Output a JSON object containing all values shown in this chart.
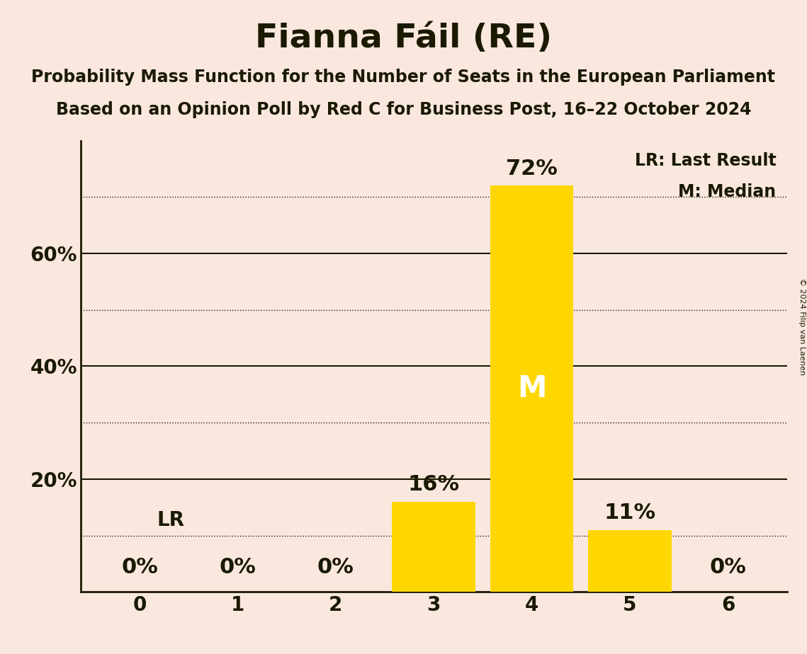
{
  "title": "Fianna Fáil (RE)",
  "subtitle1": "Probability Mass Function for the Number of Seats in the European Parliament",
  "subtitle2": "Based on an Opinion Poll by Red C for Business Post, 16–22 October 2024",
  "copyright": "© 2024 Filip van Laenen",
  "categories": [
    0,
    1,
    2,
    3,
    4,
    5,
    6
  ],
  "values": [
    0,
    0,
    0,
    16,
    72,
    11,
    0
  ],
  "bar_color": "#FFD700",
  "background_color": "#FAE8DF",
  "text_color": "#1a1a00",
  "median_bar": 4,
  "lr_value": 10,
  "ylim_max": 80,
  "yticks_solid": [
    20,
    40,
    60
  ],
  "yticks_dotted": [
    10,
    30,
    50,
    70
  ],
  "legend_lr": "LR: Last Result",
  "legend_m": "M: Median",
  "title_fontsize": 34,
  "subtitle_fontsize": 17,
  "tick_fontsize": 20,
  "bar_label_fontsize": 22,
  "median_label_fontsize": 30,
  "legend_fontsize": 17,
  "lr_label_fontsize": 20
}
